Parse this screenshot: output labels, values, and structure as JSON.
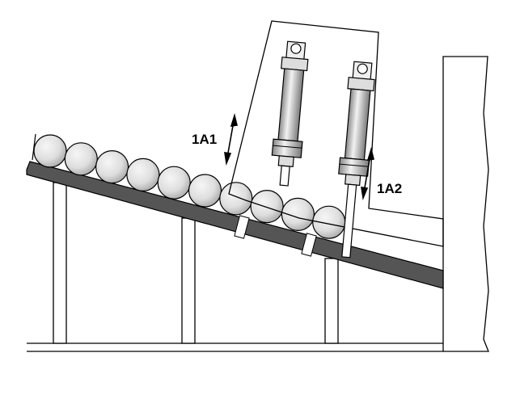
{
  "labels": {
    "cylinder_1": "1A1",
    "cylinder_2": "1A2"
  },
  "colors": {
    "line": "#000000",
    "rail": "#555555",
    "roller_light": "#f2f2f2",
    "roller_dark": "#bdbdbd",
    "cylinder_light": "#ededed",
    "cylinder_dark": "#8a8a8a",
    "background": "#ffffff"
  },
  "rollers": {
    "count": 10
  }
}
